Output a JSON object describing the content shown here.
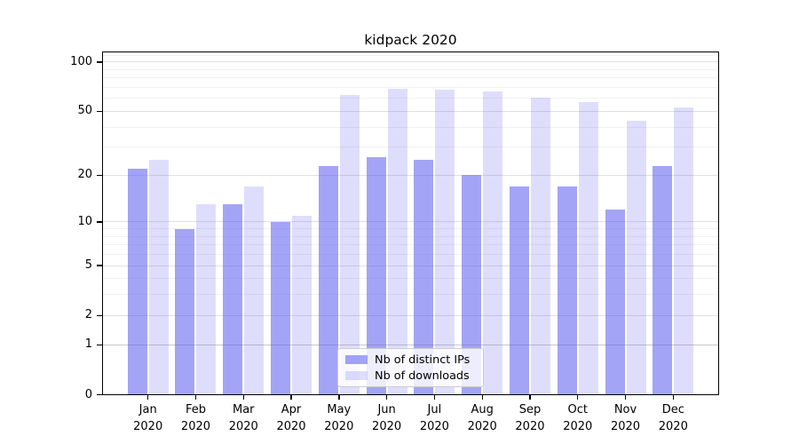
{
  "chart_data": {
    "type": "bar",
    "title": "kidpack 2020",
    "categories": [
      {
        "month": "Jan",
        "year": "2020"
      },
      {
        "month": "Feb",
        "year": "2020"
      },
      {
        "month": "Mar",
        "year": "2020"
      },
      {
        "month": "Apr",
        "year": "2020"
      },
      {
        "month": "May",
        "year": "2020"
      },
      {
        "month": "Jun",
        "year": "2020"
      },
      {
        "month": "Jul",
        "year": "2020"
      },
      {
        "month": "Aug",
        "year": "2020"
      },
      {
        "month": "Sep",
        "year": "2020"
      },
      {
        "month": "Oct",
        "year": "2020"
      },
      {
        "month": "Nov",
        "year": "2020"
      },
      {
        "month": "Dec",
        "year": "2020"
      }
    ],
    "series": [
      {
        "name": "Nb of distinct IPs",
        "values": [
          22,
          9,
          13,
          10,
          23,
          26,
          25,
          20,
          17,
          17,
          12,
          23
        ],
        "color": "rgba(90,90,240,0.55)",
        "color_hex_on_white": "#a4a4f4"
      },
      {
        "name": "Nb of downloads",
        "values": [
          25,
          13,
          17,
          11,
          63,
          69,
          68,
          66,
          61,
          57,
          44,
          53
        ],
        "color": "rgba(90,90,240,0.2)",
        "color_hex_on_white": "#dedefb"
      }
    ],
    "y_axis": {
      "scale": "symlog",
      "ticks": [
        0,
        1,
        2,
        5,
        10,
        20,
        50,
        100
      ],
      "minor_gridlines": [
        3,
        4,
        6,
        7,
        8,
        9,
        30,
        40,
        60,
        70,
        80,
        90,
        110
      ],
      "ylim": [
        0,
        116
      ]
    },
    "xlabel": "",
    "ylabel": "",
    "grid": true,
    "legend_position": "lower center",
    "colors": {
      "grid_major": "#e0e0e0",
      "grid_minor": "#f1f1f1",
      "grid_unit_line": "#c8c8c8",
      "axis": "#000000",
      "background": "#ffffff",
      "text": "#000000"
    }
  }
}
